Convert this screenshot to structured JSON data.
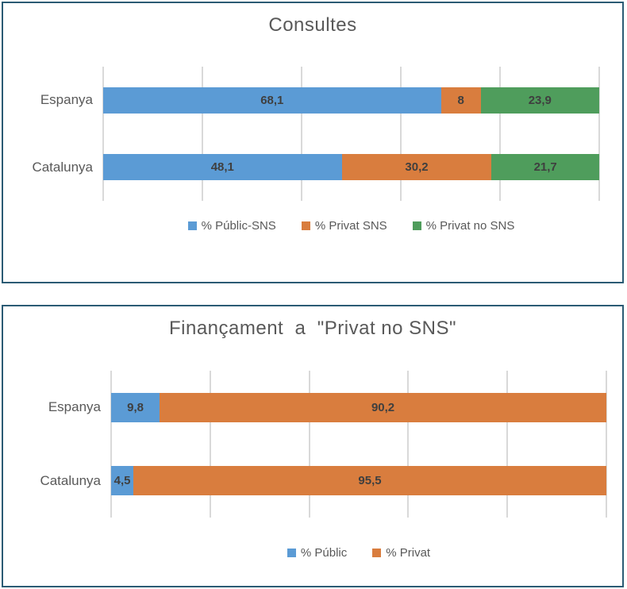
{
  "page": {
    "background": "#ffffff",
    "panel_border_color": "#2B5B74"
  },
  "styles": {
    "gridline_color": "#D9D9D9",
    "title_color": "#595959",
    "category_label_color": "#595959",
    "value_label_color": "#3F3F3F"
  },
  "chart_data": [
    {
      "type": "bar",
      "orientation": "horizontal-stacked",
      "title": "Consultes",
      "categories": [
        "Espanya",
        "Catalunya"
      ],
      "series": [
        {
          "name": "% Públic-SNS",
          "color": "#5B9BD5",
          "values": [
            68.1,
            48.1
          ],
          "value_labels": [
            "68,1",
            "48,1"
          ]
        },
        {
          "name": "% Privat SNS",
          "color": "#D97D3E",
          "values": [
            8,
            30.2
          ],
          "value_labels": [
            "8",
            "30,2"
          ]
        },
        {
          "name": "% Privat no SNS",
          "color": "#4F9D5C",
          "values": [
            23.9,
            21.7
          ],
          "value_labels": [
            "23,9",
            "21,7"
          ]
        }
      ],
      "xlim": [
        0,
        100
      ],
      "gridline_step": 20,
      "grid": "vertical",
      "legend_position": "bottom"
    },
    {
      "type": "bar",
      "orientation": "horizontal-stacked",
      "title": "Finançament  a  \"Privat no SNS\"",
      "categories": [
        "Espanya",
        "Catalunya"
      ],
      "series": [
        {
          "name": "% Públic",
          "color": "#5B9BD5",
          "values": [
            9.8,
            4.5
          ],
          "value_labels": [
            "9,8",
            "4,5"
          ]
        },
        {
          "name": "% Privat",
          "color": "#D97D3E",
          "values": [
            90.2,
            95.5
          ],
          "value_labels": [
            "90,2",
            "95,5"
          ]
        }
      ],
      "xlim": [
        0,
        100
      ],
      "gridline_step": 20,
      "grid": "vertical",
      "legend_position": "bottom"
    }
  ]
}
